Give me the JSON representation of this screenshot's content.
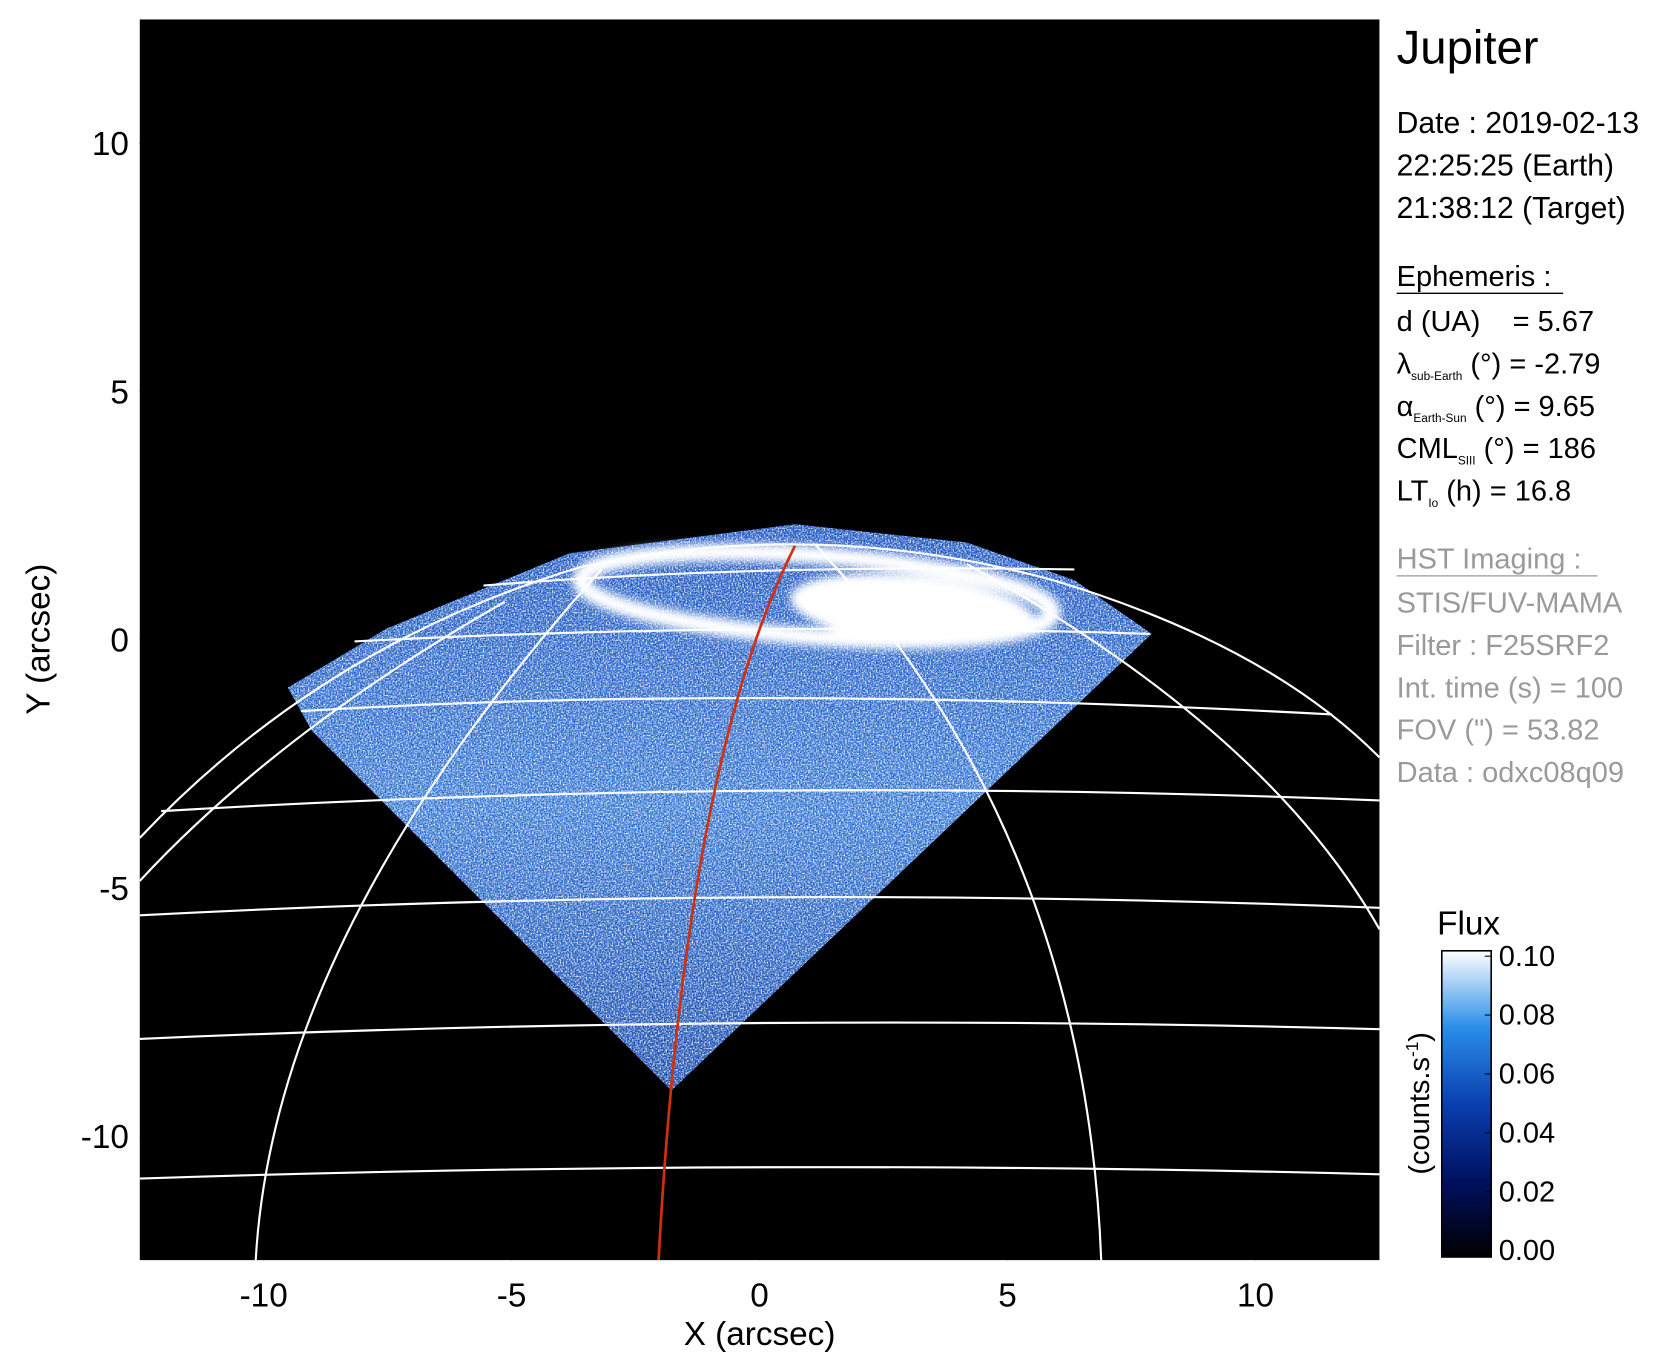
{
  "chart_data": {
    "type": "image",
    "xlabel": "X (arcsec)",
    "ylabel": "Y (arcsec)",
    "xlim": [
      -12.5,
      12.5
    ],
    "ylim": [
      -12.5,
      12.5
    ],
    "xticks": [
      -10,
      -5,
      0,
      5,
      10
    ],
    "yticks": [
      -10,
      -5,
      0,
      5,
      10
    ],
    "colorbar": {
      "title": "Flux",
      "unit_main": "(counts.s",
      "unit_sup": "-1",
      "unit_end": ")",
      "lim": [
        0,
        0.1
      ],
      "ticks": [
        {
          "value": 0,
          "label": "0.00"
        },
        0.02,
        0.04,
        0.06,
        0.08,
        {
          "value": 0.1,
          "label": "0.10"
        }
      ]
    }
  },
  "panel": {
    "title": "Jupiter",
    "date_lines": [
      "Date : 2019-02-13",
      "22:25:25 (Earth)",
      "21:38:12 (Target)"
    ],
    "ephemeris": {
      "heading": "Ephemeris :",
      "rows": [
        {
          "main": "d (UA)    = 5.67"
        },
        {
          "main": "λ",
          "sub": "sub-Earth",
          "rest": " (°) = -2.79"
        },
        {
          "main": "α",
          "sub": "Earth-Sun",
          "rest": " (°) = 9.65"
        },
        {
          "main": "CML",
          "sub": "SIII",
          "rest": " (°) = 186"
        },
        {
          "main": "LT",
          "sub": "Io",
          "rest": " (h) = 16.8"
        }
      ]
    },
    "imaging": {
      "heading": "HST Imaging :",
      "lines": [
        "STIS/FUV-MAMA",
        "Filter : F25SRF2",
        "Int. time (s) = 100",
        "FOV (\") = 53.82",
        "Data : odxc08q09"
      ]
    }
  }
}
